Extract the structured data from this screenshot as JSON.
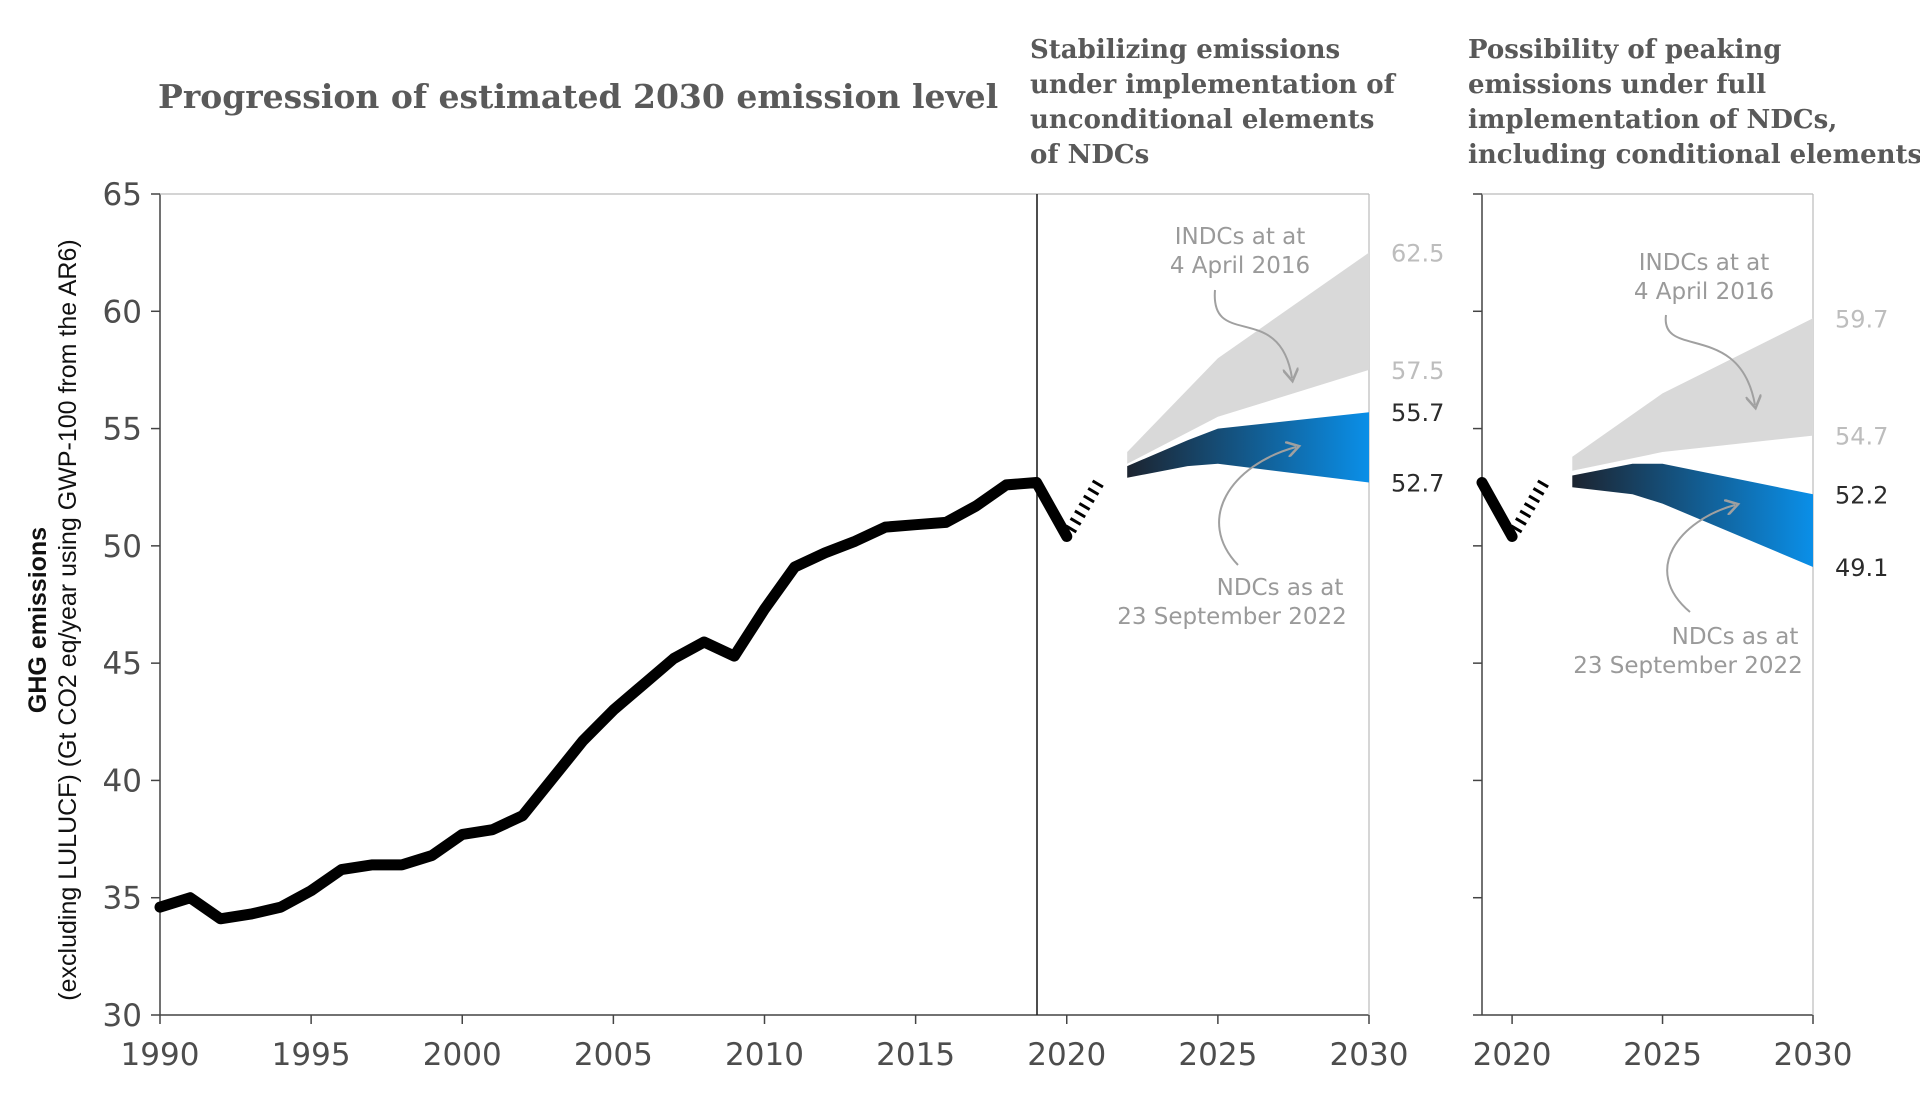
{
  "chart_data": {
    "type": "line",
    "title": "Progression of estimated 2030 emission level",
    "ylabel_bold": "GHG emissions",
    "ylabel": "(excluding LULUCF) (Gt CO2 eq/year using GWP-100 from the AR6)",
    "ylim": [
      30,
      65
    ],
    "yticks": [
      "30",
      "35",
      "40",
      "45",
      "50",
      "55",
      "60",
      "65"
    ],
    "historical": {
      "x": [
        1990,
        1991,
        1992,
        1993,
        1994,
        1995,
        1996,
        1997,
        1998,
        1999,
        2000,
        2001,
        2002,
        2003,
        2004,
        2005,
        2006,
        2007,
        2008,
        2009,
        2010,
        2011,
        2012,
        2013,
        2014,
        2015,
        2016,
        2017,
        2018,
        2019,
        2020
      ],
      "y": [
        34.6,
        35.0,
        34.1,
        34.3,
        34.6,
        35.3,
        36.2,
        36.4,
        36.4,
        36.8,
        37.7,
        37.9,
        38.5,
        40.1,
        41.7,
        43.0,
        44.1,
        45.2,
        45.9,
        45.3,
        47.3,
        49.1,
        49.7,
        50.2,
        50.8,
        50.9,
        51.0,
        51.7,
        52.6,
        52.7,
        50.4
      ]
    },
    "panels": [
      {
        "title_lines": [
          "Stabilizing emissions",
          "under implementation of",
          "unconditional elements",
          "of NDCs"
        ],
        "xlim": [
          1990,
          2030
        ],
        "xticks": [
          "1990",
          "1995",
          "2000",
          "2005",
          "2010",
          "2015",
          "2020",
          "2025",
          "2030"
        ],
        "indc_band": {
          "x": [
            2022,
            2025,
            2030
          ],
          "upper": [
            54.0,
            58.0,
            62.5
          ],
          "lower": [
            53.5,
            55.5,
            57.5
          ]
        },
        "ndc_band": {
          "x": [
            2022,
            2024,
            2025,
            2030
          ],
          "upper": [
            53.4,
            54.5,
            55.0,
            55.7
          ],
          "lower": [
            52.9,
            53.4,
            53.5,
            52.7
          ]
        },
        "end_labels": {
          "indc_upper": "62.5",
          "indc_lower": "57.5",
          "ndc_upper": "55.7",
          "ndc_lower": "52.7"
        },
        "indc_annotation": [
          "INDCs at at",
          "4 April 2016"
        ],
        "ndc_annotation": [
          "NDCs as at",
          "23 September 2022"
        ]
      },
      {
        "title_lines": [
          "Possibility of peaking",
          "emissions under full",
          "implementation of NDCs,",
          "including conditional elements"
        ],
        "xlim": [
          2019,
          2030
        ],
        "xticks": [
          "2020",
          "2025",
          "2030"
        ],
        "indc_band": {
          "x": [
            2022,
            2025,
            2030
          ],
          "upper": [
            53.8,
            56.5,
            59.7
          ],
          "lower": [
            53.2,
            54.0,
            54.7
          ]
        },
        "ndc_band": {
          "x": [
            2022,
            2024,
            2025,
            2030
          ],
          "upper": [
            53.0,
            53.5,
            53.5,
            52.2
          ],
          "lower": [
            52.5,
            52.2,
            51.8,
            49.1
          ]
        },
        "end_labels": {
          "indc_upper": "59.7",
          "indc_lower": "54.7",
          "ndc_upper": "52.2",
          "ndc_lower": "49.1"
        },
        "indc_annotation": [
          "INDCs at at",
          "4 April 2016"
        ],
        "ndc_annotation": [
          "NDCs as at",
          "23 September 2022"
        ]
      }
    ]
  },
  "colors": {
    "history_line": "#000000",
    "indc_band": "#d9d9d9",
    "ndc_dark": "#1c2430",
    "ndc_bright": "#0a8fe8",
    "axis": "#444444",
    "annotation_arrow": "#a0a0a0"
  }
}
